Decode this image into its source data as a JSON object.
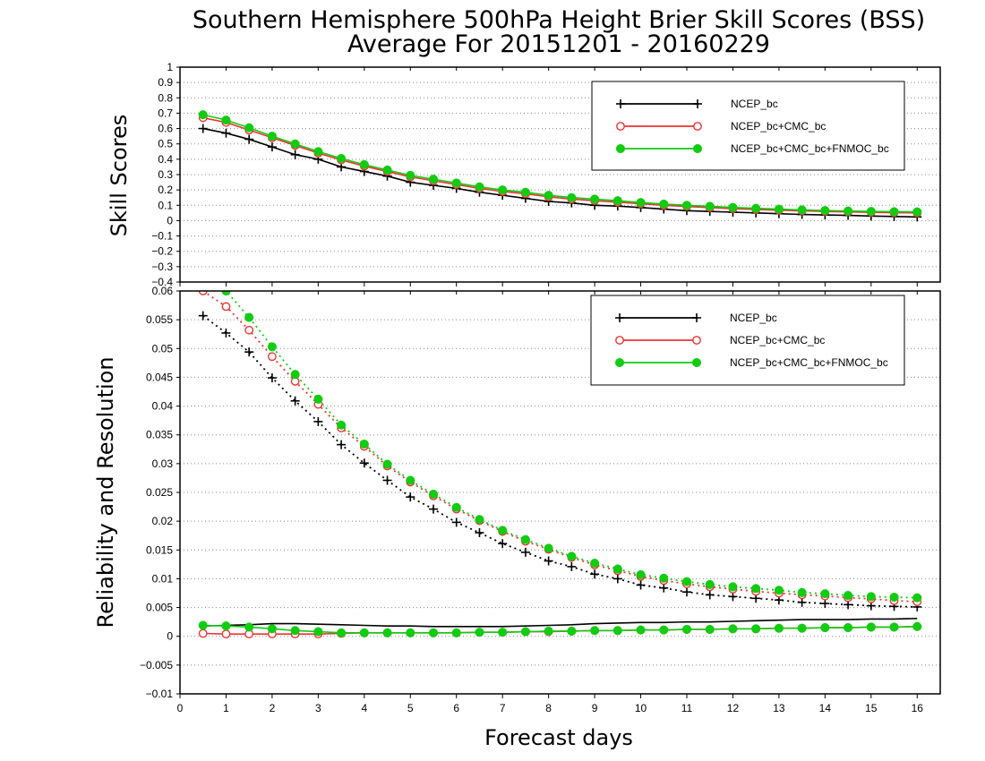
{
  "title_line1": "Southern Hemisphere 500hPa Height Brier Skill Scores (BSS)",
  "title_line2": "Average For 20151201 - 20160229",
  "colors": {
    "ncep": "#000000",
    "cmc": "#ee3333",
    "fnmoc": "#11cc11"
  },
  "chart_data": [
    {
      "type": "line",
      "ylabel": "Skill Scores",
      "xlabel": "",
      "xlim": [
        0,
        16.5
      ],
      "ylim": [
        -0.4,
        1
      ],
      "xticks": [
        0,
        1,
        2,
        3,
        4,
        5,
        6,
        7,
        8,
        9,
        10,
        11,
        12,
        13,
        14,
        15,
        16
      ],
      "yticks": [
        "1",
        "0.9",
        "0.8",
        "0.7",
        "0.6",
        "0.5",
        "0.4",
        "0.3",
        "0.2",
        "0.1",
        "0",
        "−0.1",
        "−0.2",
        "−0.3",
        "−0.4"
      ],
      "yticks_values": [
        1,
        0.9,
        0.8,
        0.7,
        0.6,
        0.5,
        0.4,
        0.3,
        0.2,
        0.1,
        0,
        -0.1,
        -0.2,
        -0.3,
        -0.4
      ],
      "grid": "horizontal dotted",
      "legend_position": "top-right",
      "x": [
        0.5,
        1,
        1.5,
        2,
        2.5,
        3,
        3.5,
        4,
        4.5,
        5,
        5.5,
        6,
        6.5,
        7,
        7.5,
        8,
        8.5,
        9,
        9.5,
        10,
        10.5,
        11,
        11.5,
        12,
        12.5,
        13,
        13.5,
        14,
        14.5,
        15,
        15.5,
        16
      ],
      "series": [
        {
          "name": "NCEP_bc",
          "style": "solid",
          "marker": "plus",
          "color_key": "ncep",
          "values": [
            0.6,
            0.57,
            0.53,
            0.48,
            0.43,
            0.4,
            0.35,
            0.32,
            0.29,
            0.25,
            0.23,
            0.21,
            0.185,
            0.165,
            0.145,
            0.125,
            0.115,
            0.1,
            0.095,
            0.085,
            0.075,
            0.065,
            0.06,
            0.055,
            0.05,
            0.045,
            0.04,
            0.037,
            0.034,
            0.03,
            0.027,
            0.024
          ]
        },
        {
          "name": "NCEP_bc+CMC_bc",
          "style": "solid",
          "marker": "circle-open",
          "color_key": "cmc",
          "values": [
            0.67,
            0.64,
            0.59,
            0.54,
            0.49,
            0.44,
            0.395,
            0.355,
            0.32,
            0.285,
            0.26,
            0.235,
            0.21,
            0.19,
            0.175,
            0.155,
            0.14,
            0.13,
            0.12,
            0.11,
            0.1,
            0.092,
            0.085,
            0.078,
            0.073,
            0.068,
            0.064,
            0.06,
            0.057,
            0.054,
            0.052,
            0.05
          ]
        },
        {
          "name": "NCEP_bc+CMC_bc+FNMOC_bc",
          "style": "solid",
          "marker": "circle-filled",
          "color_key": "fnmoc",
          "values": [
            0.69,
            0.655,
            0.605,
            0.55,
            0.5,
            0.45,
            0.405,
            0.365,
            0.33,
            0.295,
            0.27,
            0.245,
            0.22,
            0.2,
            0.185,
            0.165,
            0.15,
            0.14,
            0.13,
            0.118,
            0.108,
            0.1,
            0.093,
            0.086,
            0.08,
            0.075,
            0.07,
            0.066,
            0.063,
            0.06,
            0.058,
            0.057
          ]
        }
      ]
    },
    {
      "type": "line",
      "ylabel": "Reliability and Resolution",
      "xlabel": "Forecast days",
      "xlim": [
        0,
        16.5
      ],
      "ylim": [
        -0.01,
        0.06
      ],
      "xticks": [
        0,
        1,
        2,
        3,
        4,
        5,
        6,
        7,
        8,
        9,
        10,
        11,
        12,
        13,
        14,
        15,
        16
      ],
      "yticks": [
        "0.06",
        "0.055",
        "0.05",
        "0.045",
        "0.04",
        "0.035",
        "0.03",
        "0.025",
        "0.02",
        "0.015",
        "0.01",
        "0.005",
        "0",
        "−0.005",
        "−0.01"
      ],
      "yticks_values": [
        0.06,
        0.055,
        0.05,
        0.045,
        0.04,
        0.035,
        0.03,
        0.025,
        0.02,
        0.015,
        0.01,
        0.005,
        0,
        -0.005,
        -0.01
      ],
      "grid": "horizontal dotted",
      "legend_position": "top-right",
      "x": [
        0.5,
        1,
        1.5,
        2,
        2.5,
        3,
        3.5,
        4,
        4.5,
        5,
        5.5,
        6,
        6.5,
        7,
        7.5,
        8,
        8.5,
        9,
        9.5,
        10,
        10.5,
        11,
        11.5,
        12,
        12.5,
        13,
        13.5,
        14,
        14.5,
        15,
        15.5,
        16
      ],
      "series": [
        {
          "name": "NCEP_bc",
          "part": "resolution",
          "style": "dotted",
          "marker": "plus",
          "color_key": "ncep",
          "values": [
            0.0557,
            0.0527,
            0.0494,
            0.0449,
            0.0409,
            0.0373,
            0.0333,
            0.0301,
            0.0271,
            0.0242,
            0.0221,
            0.0198,
            0.018,
            0.0161,
            0.0146,
            0.0131,
            0.0121,
            0.0108,
            0.01,
            0.0089,
            0.0084,
            0.0077,
            0.0072,
            0.0069,
            0.0066,
            0.0063,
            0.0059,
            0.0057,
            0.0055,
            0.0053,
            0.0052,
            0.0051
          ]
        },
        {
          "name": "NCEP_bc+CMC_bc",
          "part": "resolution",
          "style": "dotted",
          "marker": "circle-open",
          "color_key": "cmc",
          "values": [
            0.06,
            0.0573,
            0.0532,
            0.0486,
            0.0443,
            0.0403,
            0.0362,
            0.033,
            0.0296,
            0.0268,
            0.0244,
            0.0221,
            0.0201,
            0.0182,
            0.0165,
            0.0151,
            0.0137,
            0.0124,
            0.0114,
            0.0104,
            0.0097,
            0.0091,
            0.0086,
            0.0082,
            0.0078,
            0.0075,
            0.0072,
            0.007,
            0.0067,
            0.0065,
            0.0062,
            0.006
          ]
        },
        {
          "name": "NCEP_bc+CMC_bc+FNMOC_bc",
          "part": "resolution",
          "style": "dotted",
          "marker": "circle-filled",
          "color_key": "fnmoc",
          "values": [
            0.061,
            0.06,
            0.0554,
            0.0503,
            0.0455,
            0.0412,
            0.0367,
            0.0334,
            0.0299,
            0.0271,
            0.0247,
            0.0224,
            0.0203,
            0.0184,
            0.0168,
            0.0153,
            0.0139,
            0.0127,
            0.0117,
            0.0107,
            0.0101,
            0.0095,
            0.009,
            0.0086,
            0.0083,
            0.008,
            0.0076,
            0.0074,
            0.0071,
            0.0069,
            0.0068,
            0.0067
          ]
        },
        {
          "name": "NCEP_bc",
          "part": "reliability",
          "style": "solid",
          "marker": "none",
          "color_key": "ncep",
          "values": [
            0.0018,
            0.0019,
            0.002,
            0.0022,
            0.0022,
            0.0021,
            0.002,
            0.0019,
            0.0018,
            0.0018,
            0.0017,
            0.0017,
            0.0017,
            0.0017,
            0.0018,
            0.0019,
            0.002,
            0.0022,
            0.0023,
            0.0024,
            0.0024,
            0.0025,
            0.0025,
            0.0026,
            0.0027,
            0.0028,
            0.0029,
            0.0029,
            0.0029,
            0.003,
            0.003,
            0.0031
          ]
        },
        {
          "name": "NCEP_bc+CMC_bc",
          "part": "reliability",
          "style": "solid",
          "marker": "circle-open",
          "color_key": "cmc",
          "values": [
            0.0005,
            0.0004,
            0.0004,
            0.0004,
            0.0004,
            0.0004,
            0.0005,
            0.0006,
            0.0006,
            0.0006,
            0.0006,
            0.0006,
            0.0007,
            0.0007,
            0.0008,
            0.0008,
            0.0009,
            0.001,
            0.001,
            0.0011,
            0.0011,
            0.0012,
            0.0012,
            0.0013,
            0.0013,
            0.0014,
            0.0014,
            0.0015,
            0.0015,
            0.0016,
            0.0016,
            0.0017
          ]
        },
        {
          "name": "NCEP_bc+CMC_bc+FNMOC_bc",
          "part": "reliability",
          "style": "solid",
          "marker": "circle-filled",
          "color_key": "fnmoc",
          "values": [
            0.0019,
            0.0018,
            0.0016,
            0.0013,
            0.001,
            0.0008,
            0.0006,
            0.0006,
            0.0006,
            0.0006,
            0.0006,
            0.0006,
            0.0007,
            0.0007,
            0.0008,
            0.0009,
            0.0009,
            0.001,
            0.001,
            0.0011,
            0.0011,
            0.0012,
            0.0012,
            0.0013,
            0.0013,
            0.0014,
            0.0014,
            0.0015,
            0.0015,
            0.0016,
            0.0016,
            0.0017
          ]
        }
      ]
    }
  ]
}
